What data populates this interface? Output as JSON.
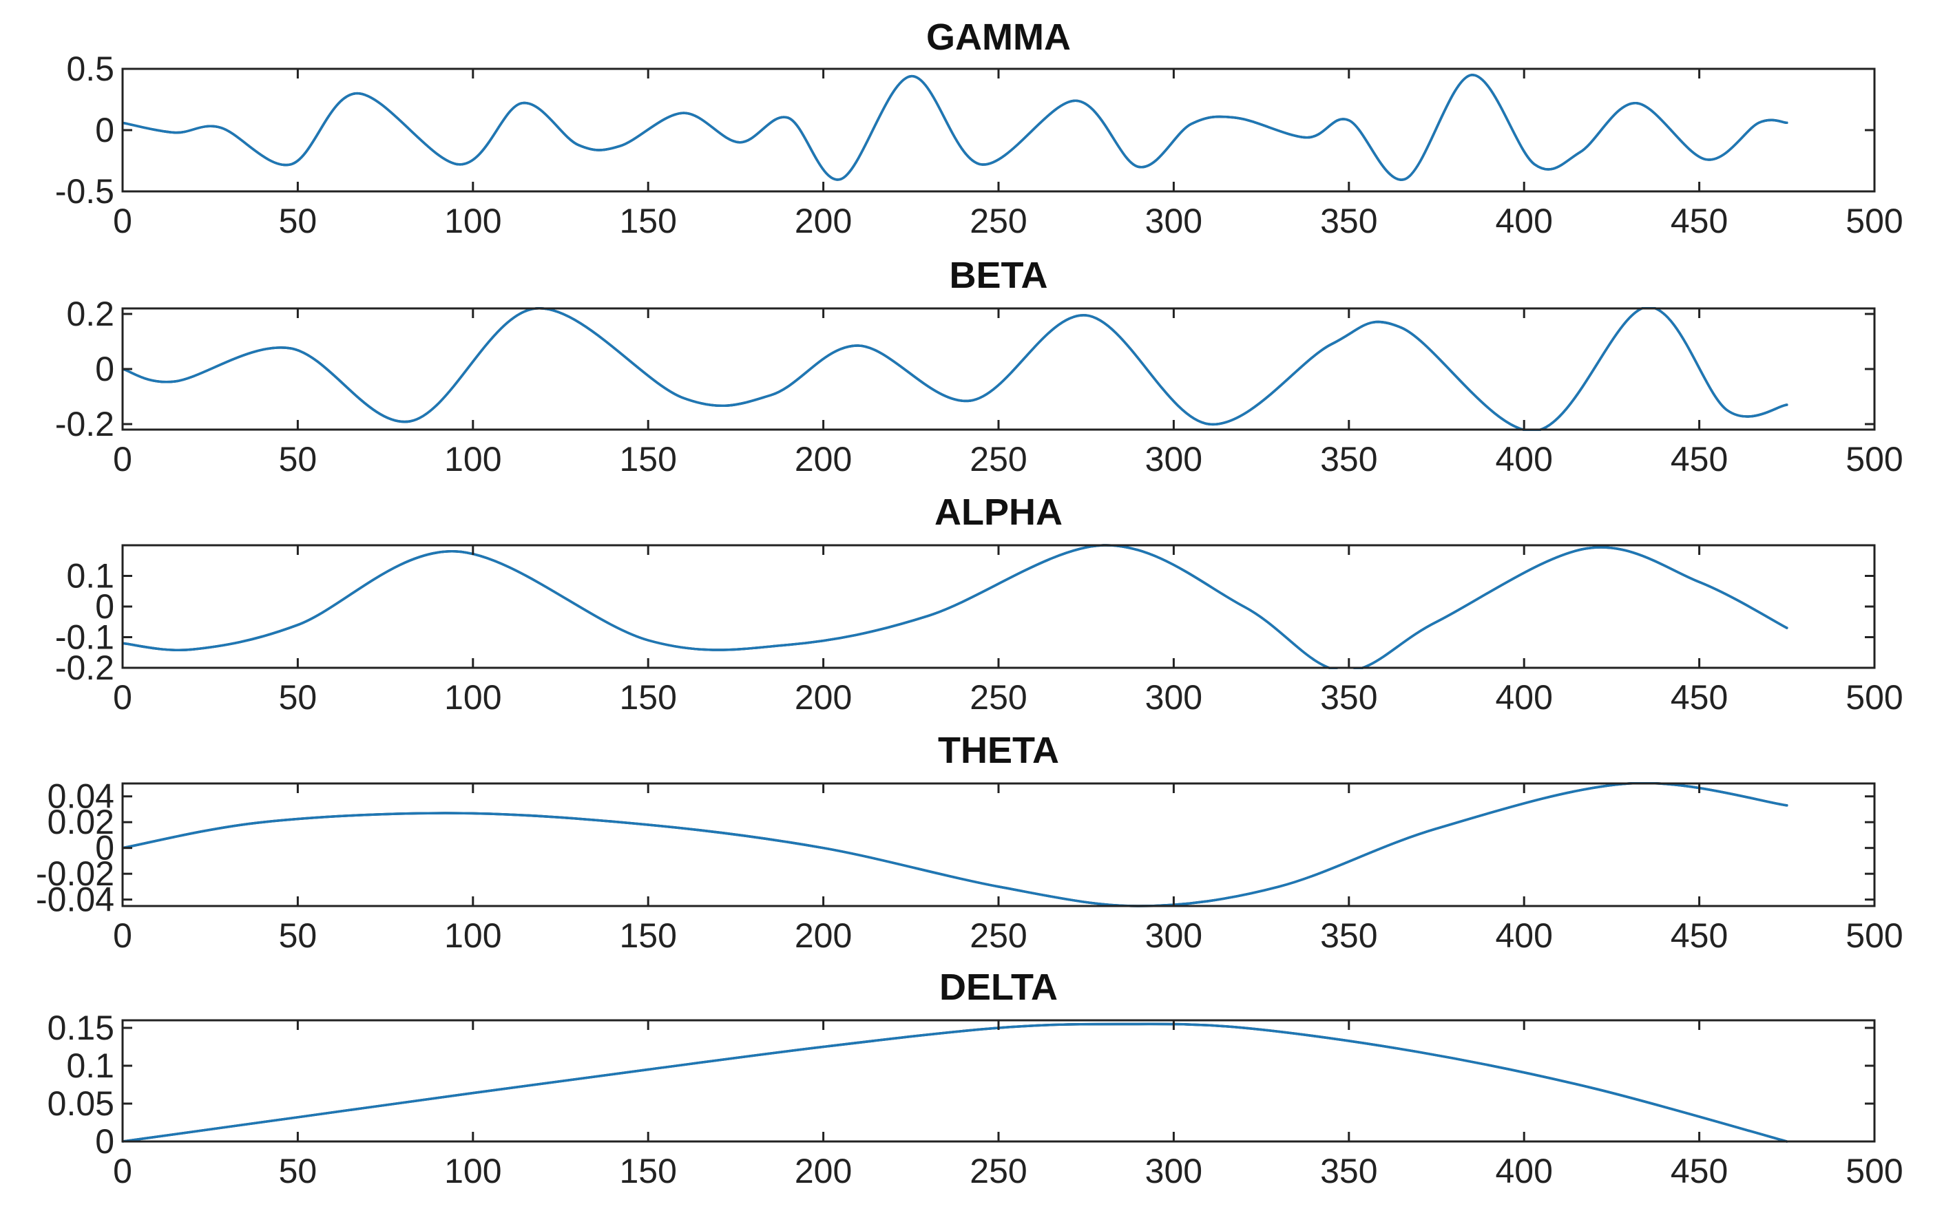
{
  "colors": {
    "line": "#1f77b4",
    "outline": "#0b2a45",
    "axis": "#222222"
  },
  "chart_data": [
    {
      "type": "line",
      "title": "GAMMA",
      "xlim": [
        0,
        500
      ],
      "ylim": [
        -0.5,
        0.5
      ],
      "xticks": [
        0,
        50,
        100,
        150,
        200,
        250,
        300,
        350,
        400,
        450,
        500
      ],
      "yticks": [
        -0.5,
        0,
        0.5
      ],
      "ytick_labels": [
        "-0.5",
        "0",
        "0.5"
      ],
      "grid": false,
      "series": [
        {
          "x": [
            0,
            15,
            28,
            48,
            67,
            96,
            114,
            130,
            142,
            160,
            176,
            190,
            205,
            225,
            245,
            272,
            290,
            305,
            318,
            338,
            350,
            366,
            385,
            403,
            416,
            432,
            452,
            467,
            475
          ],
          "y": [
            0.06,
            -0.02,
            0.02,
            -0.28,
            0.3,
            -0.28,
            0.22,
            -0.12,
            -0.13,
            0.14,
            -0.1,
            0.1,
            -0.4,
            0.44,
            -0.28,
            0.24,
            -0.3,
            0.05,
            0.1,
            -0.06,
            0.08,
            -0.4,
            0.45,
            -0.28,
            -0.18,
            0.22,
            -0.24,
            0.06,
            0.06
          ]
        }
      ]
    },
    {
      "type": "line",
      "title": "BETA",
      "xlim": [
        0,
        500
      ],
      "ylim": [
        -0.22,
        0.22
      ],
      "xticks": [
        0,
        50,
        100,
        150,
        200,
        250,
        300,
        350,
        400,
        450,
        500
      ],
      "yticks": [
        -0.2,
        0,
        0.2
      ],
      "ytick_labels": [
        "-0.2",
        "0",
        "0.2"
      ],
      "grid": false,
      "series": [
        {
          "x": [
            0,
            15,
            48,
            82,
            118,
            160,
            185,
            210,
            242,
            275,
            310,
            345,
            365,
            403,
            435,
            458,
            475
          ],
          "y": [
            0.0,
            -0.045,
            0.075,
            -0.19,
            0.22,
            -0.105,
            -0.095,
            0.085,
            -0.115,
            0.195,
            -0.2,
            0.09,
            0.15,
            -0.225,
            0.225,
            -0.15,
            -0.13
          ]
        }
      ]
    },
    {
      "type": "line",
      "title": "ALPHA",
      "xlim": [
        0,
        500
      ],
      "ylim": [
        -0.2,
        0.2
      ],
      "xticks": [
        0,
        50,
        100,
        150,
        200,
        250,
        300,
        350,
        400,
        450,
        500
      ],
      "yticks": [
        -0.2,
        -0.1,
        0,
        0.1
      ],
      "ytick_labels": [
        "-0.2",
        "-0.1",
        "0",
        "0.1"
      ],
      "grid": false,
      "series": [
        {
          "x": [
            0,
            20,
            50,
            95,
            150,
            190,
            230,
            280,
            320,
            348,
            375,
            418,
            450,
            475
          ],
          "y": [
            -0.12,
            -0.14,
            -0.06,
            0.18,
            -0.11,
            -0.125,
            -0.03,
            0.2,
            0.0,
            -0.21,
            -0.05,
            0.19,
            0.08,
            -0.07
          ]
        }
      ]
    },
    {
      "type": "line",
      "title": "THETA",
      "xlim": [
        0,
        500
      ],
      "ylim": [
        -0.045,
        0.05
      ],
      "xticks": [
        0,
        50,
        100,
        150,
        200,
        250,
        300,
        350,
        400,
        450,
        500
      ],
      "yticks": [
        -0.04,
        -0.02,
        0,
        0.02,
        0.04
      ],
      "ytick_labels": [
        "-0.04",
        "-0.02",
        "0",
        "0.02",
        "0.04"
      ],
      "grid": false,
      "series": [
        {
          "x": [
            0,
            40,
            95,
            150,
            200,
            250,
            290,
            330,
            375,
            430,
            475
          ],
          "y": [
            0.0,
            0.02,
            0.027,
            0.018,
            0.0,
            -0.03,
            -0.045,
            -0.03,
            0.015,
            0.05,
            0.033
          ]
        }
      ]
    },
    {
      "type": "line",
      "title": "DELTA",
      "xlim": [
        0,
        500
      ],
      "ylim": [
        0,
        0.16
      ],
      "xticks": [
        0,
        50,
        100,
        150,
        200,
        250,
        300,
        350,
        400,
        450,
        500
      ],
      "yticks": [
        0,
        0.05,
        0.1,
        0.15
      ],
      "ytick_labels": [
        "0",
        "0.05",
        "0.1",
        "0.15"
      ],
      "grid": false,
      "series": [
        {
          "x": [
            0,
            50,
            100,
            150,
            200,
            250,
            285,
            320,
            370,
            420,
            475
          ],
          "y": [
            0.0,
            0.032,
            0.064,
            0.095,
            0.125,
            0.15,
            0.155,
            0.15,
            0.118,
            0.07,
            0.0
          ]
        }
      ]
    }
  ]
}
